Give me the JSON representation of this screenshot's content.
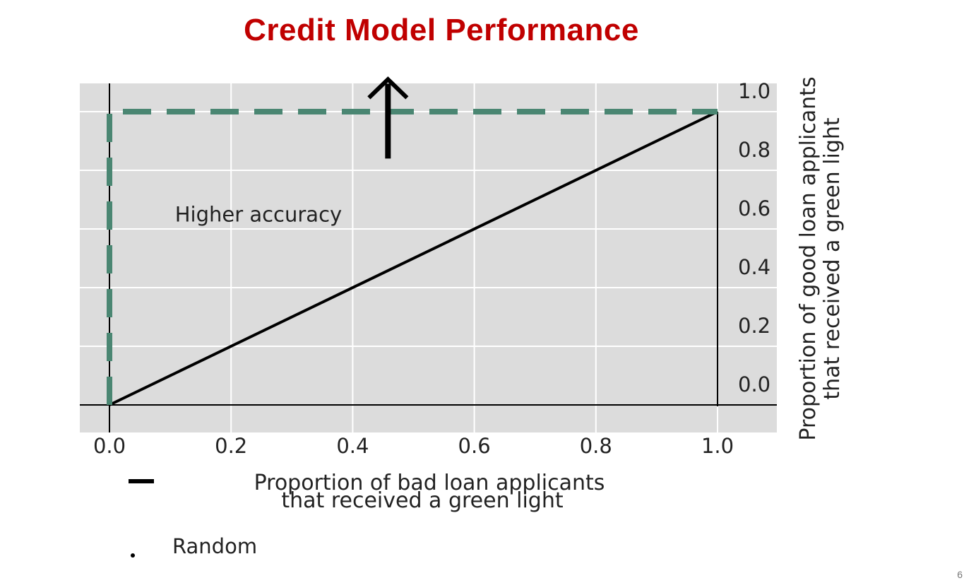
{
  "slide": {
    "title": "Credit Model Performance",
    "slide_number": "6"
  },
  "colors": {
    "title": "#c00000",
    "panel": "#dcdcdc",
    "grid": "#ffffff",
    "random_line": "#000000",
    "perfect_line": "#4a8672"
  },
  "chart_data": {
    "type": "line",
    "title": "",
    "xlabel": [
      "Proportion of bad loan applicants",
      "that received a green light"
    ],
    "ylabel": [
      "Proportion of good loan applicants",
      "that received a green light"
    ],
    "xlim": [
      -0.25,
      5.45
    ],
    "ylim": [
      -0.5,
      4.95
    ],
    "x_tick_values": [
      0,
      1,
      2,
      3,
      4,
      5
    ],
    "x_tick_labels": [
      "0.0",
      "0.2",
      "0.4",
      "0.6",
      "0.8",
      "1.0"
    ],
    "y_tick_values": [
      0,
      1,
      2,
      3,
      4,
      5
    ],
    "y_tick_labels": [
      "0.0",
      "0.2",
      "0.4",
      "0.6",
      "0.8",
      "1.0"
    ],
    "y_axis_side": "right",
    "grid": true,
    "series": [
      {
        "name": "Random",
        "style": "solid",
        "points": [
          [
            0,
            0
          ],
          [
            5,
            5
          ]
        ]
      },
      {
        "style": "dashed",
        "points": [
          [
            0,
            0
          ],
          [
            0,
            5
          ],
          [
            5,
            5
          ]
        ]
      }
    ],
    "annotations": [
      {
        "text": "Higher accuracy",
        "x": 0.55,
        "y": 3.25
      },
      {
        "type": "arrow",
        "direction": "up",
        "x": 2.29,
        "y_from": 4.2,
        "y_to": 5.55
      }
    ],
    "legend": {
      "placement": "bottom-left",
      "items": [
        {
          "symbol": "dash",
          "label": ""
        },
        {
          "symbol": "dot",
          "label": "Random"
        }
      ]
    }
  }
}
